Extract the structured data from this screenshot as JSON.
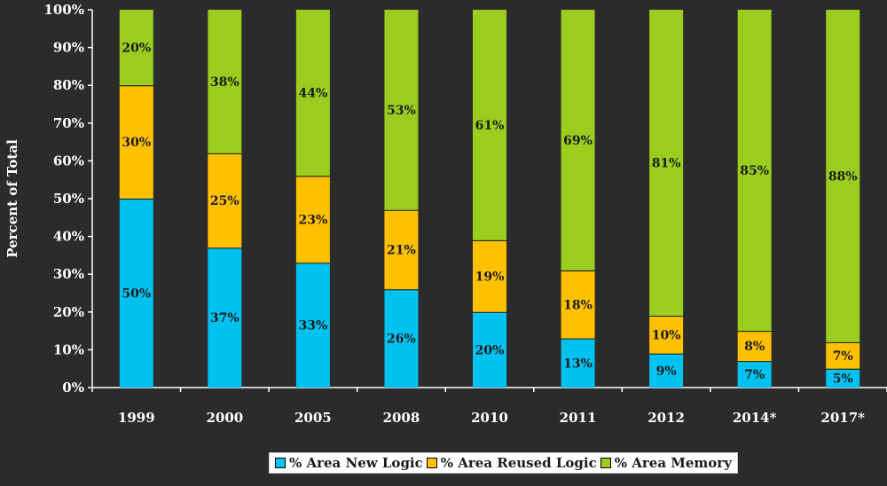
{
  "chart_data": {
    "type": "bar",
    "stacked": true,
    "percent_stacked": true,
    "ylabel": "Percent of Total",
    "xlabel": "",
    "ylim": [
      0,
      100
    ],
    "yticks": [
      "0%",
      "10%",
      "20%",
      "30%",
      "40%",
      "50%",
      "60%",
      "70%",
      "80%",
      "90%",
      "100%"
    ],
    "categories": [
      "1999",
      "2000",
      "2005",
      "2008",
      "2010",
      "2011",
      "2012",
      "2014*",
      "2017*"
    ],
    "series": [
      {
        "name": "% Area New Logic",
        "color": "#00c2f0",
        "values": [
          50,
          37,
          33,
          26,
          20,
          13,
          9,
          7,
          5
        ],
        "labels": [
          "50%",
          "37%",
          "33%",
          "26%",
          "20%",
          "13%",
          "9%",
          "7%",
          "5%"
        ]
      },
      {
        "name": "% Area Reused Logic",
        "color": "#ffc000",
        "values": [
          30,
          25,
          23,
          21,
          19,
          18,
          10,
          8,
          7
        ],
        "labels": [
          "30%",
          "25%",
          "23%",
          "21%",
          "19%",
          "18%",
          "10%",
          "8%",
          "7%"
        ]
      },
      {
        "name": "% Area Memory",
        "color": "#9acd1e",
        "values": [
          20,
          38,
          44,
          53,
          61,
          69,
          81,
          85,
          88
        ],
        "labels": [
          "20%",
          "38%",
          "44%",
          "53%",
          "61%",
          "69%",
          "81%",
          "85%",
          "88%"
        ]
      }
    ],
    "grid": false,
    "legend_position": "bottom"
  }
}
